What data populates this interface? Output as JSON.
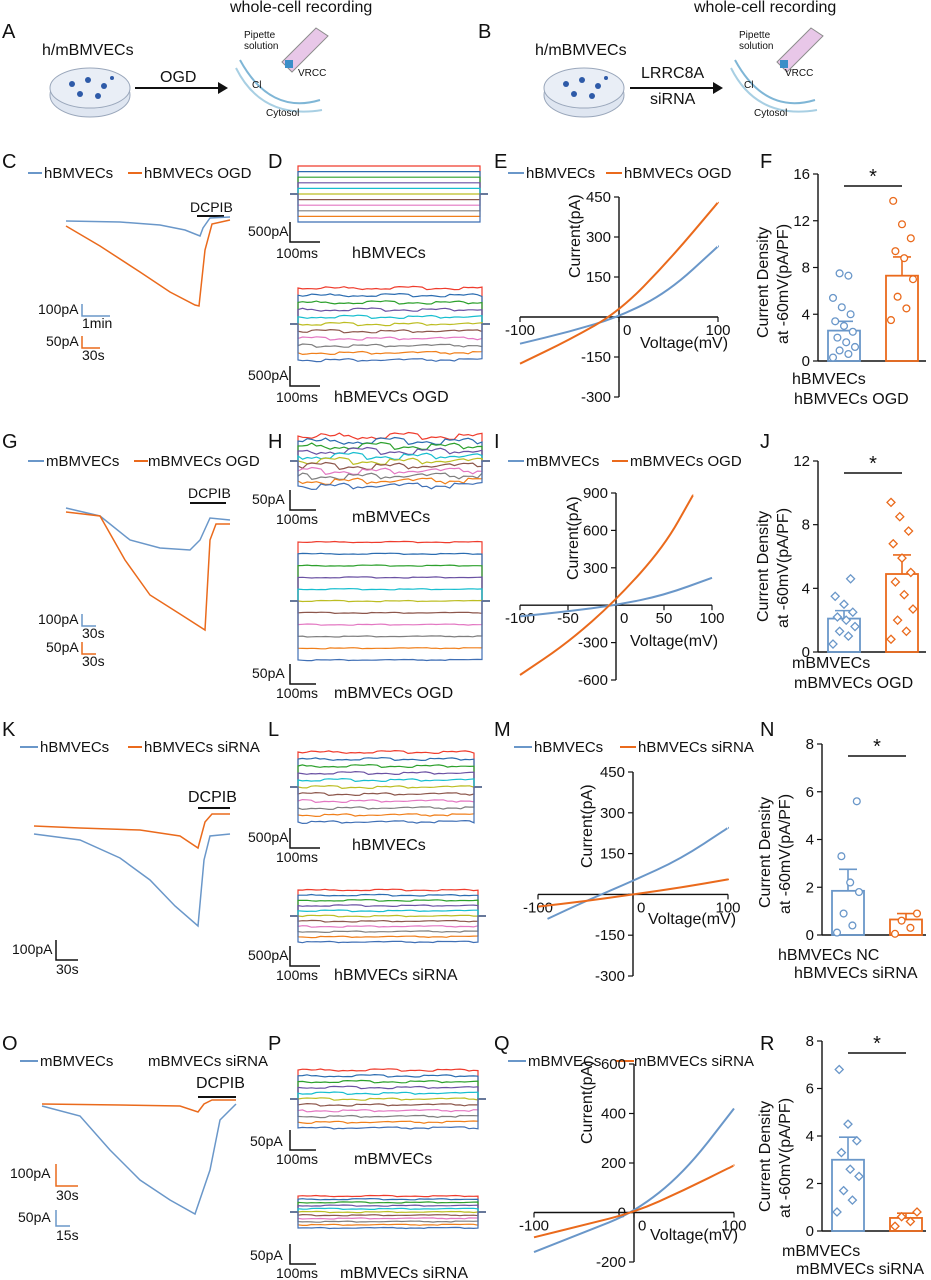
{
  "colors": {
    "blue": "#6a97c9",
    "orange": "#ea6a1c",
    "axis": "#111111"
  },
  "trace_palette": [
    "#ef3b2c",
    "#2b6cb0",
    "#2ca02c",
    "#6a51a3",
    "#17becf",
    "#bcbd22",
    "#8c564b",
    "#e377c2",
    "#7f7f7f",
    "#f07f1a",
    "#3f6fb5"
  ],
  "panel_labels": {
    "A": "A",
    "B": "B",
    "C": "C",
    "D": "D",
    "E": "E",
    "F": "F",
    "G": "G",
    "H": "H",
    "I": "I",
    "J": "J",
    "K": "K",
    "L": "L",
    "M": "M",
    "N": "N",
    "O": "O",
    "P": "P",
    "Q": "Q",
    "R": "R"
  },
  "schematic": {
    "A": {
      "title": "whole-cell recording",
      "cells": "h/mBMVECs",
      "arrow_top": "OGD",
      "arrow_bottom": "",
      "pipette": "Pipette solution",
      "pipette1": "Pipette",
      "pipette2": "solution",
      "vrcc": "VRCC",
      "cl": "Cl",
      "cytosol": "Cytosol"
    },
    "B": {
      "title": "whole-cell recording",
      "cells": "h/mBMVECs",
      "arrow_top": "LRRC8A",
      "arrow_bottom": "siRNA",
      "pipette1": "Pipette",
      "pipette2": "solution",
      "vrcc": "VRCC",
      "cl": "Cl",
      "cytosol": "Cytosol"
    }
  },
  "rows": [
    {
      "trace": {
        "legend_a": "hBMVECs",
        "legend_b": "hBMVECs OGD",
        "drug": "DCPIB",
        "scale1": "100pA",
        "scale1_t": "1min",
        "scale2": "50pA",
        "scale2_t": "30s"
      },
      "steps": {
        "top_label": "hBMVECs",
        "bottom_label": "hBMEVCs OGD",
        "scale_top": "500pA",
        "scale_top_t": "100ms",
        "scale_bottom": "500pA",
        "scale_bottom_t": "100ms"
      },
      "iv": {
        "legend_a": "hBMVECs",
        "legend_b": "hBMVECs OGD",
        "ylabel": "Current(pA)",
        "xlabel": "Voltage(mV)"
      },
      "bar": {
        "ylabel1": "Current Density",
        "ylabel2": "at -60mV(pA/PF)",
        "cat_a": "hBMVECs",
        "cat_b": "hBMVECs OGD",
        "sig": "*"
      }
    },
    {
      "trace": {
        "legend_a": "mBMVECs",
        "legend_b": "mBMVECs OGD",
        "drug": "DCPIB",
        "scale1": "100pA",
        "scale1_t": "30s",
        "scale2": "50pA",
        "scale2_t": "30s"
      },
      "steps": {
        "top_label": "mBMVECs",
        "bottom_label": "mBMVECs OGD",
        "scale_top": "50pA",
        "scale_top_t": "100ms",
        "scale_bottom": "50pA",
        "scale_bottom_t": "100ms"
      },
      "iv": {
        "legend_a": "mBMVECs",
        "legend_b": "mBMVECs OGD",
        "ylabel": "Current(pA)",
        "xlabel": "Voltage(mV)"
      },
      "bar": {
        "ylabel1": "Current Density",
        "ylabel2": "at -60mV(pA/PF)",
        "cat_a": "mBMVECs",
        "cat_b": "mBMVECs OGD",
        "sig": "*"
      }
    },
    {
      "trace": {
        "legend_a": "hBMVECs",
        "legend_b": "hBMVECs siRNA",
        "drug": "DCPIB",
        "scale1": "100pA",
        "scale1_t": "30s"
      },
      "steps": {
        "top_label": "hBMVECs",
        "bottom_label": "hBMVECs siRNA",
        "scale_top": "500pA",
        "scale_top_t": "100ms",
        "scale_bottom": "500pA",
        "scale_bottom_t": "100ms"
      },
      "iv": {
        "legend_a": "hBMVECs",
        "legend_b": "hBMVECs siRNA",
        "ylabel": "Current(pA)",
        "xlabel": "Voltage(mV)"
      },
      "bar": {
        "ylabel1": "Current Density",
        "ylabel2": "at -60mV(pA/PF)",
        "cat_a": "hBMVECs NC",
        "cat_b": "hBMVECs siRNA",
        "sig": "*"
      }
    },
    {
      "trace": {
        "legend_a": "mBMVECs",
        "legend_b": "mBMVECs siRNA",
        "drug": "DCPIB",
        "scale1": "100pA",
        "scale1_t": "30s",
        "scale2": "50pA",
        "scale2_t": "15s"
      },
      "steps": {
        "top_label": "mBMVECs",
        "bottom_label": "mBMVECs siRNA",
        "scale_top": "50pA",
        "scale_top_t": "100ms",
        "scale_bottom": "50pA",
        "scale_bottom_t": "100ms"
      },
      "iv": {
        "legend_a": "mBMVECs",
        "legend_b": "mBMVECs siRNA",
        "ylabel": "Current(pA)",
        "xlabel": "Voltage(mV)"
      },
      "bar": {
        "ylabel1": "Current Density",
        "ylabel2": "at -60mV(pA/PF)",
        "cat_a": "mBMVECs",
        "cat_b": "mBMVECs siRNA",
        "sig": "*"
      }
    }
  ],
  "chart_data": [
    {
      "panel": "E",
      "type": "line",
      "xlabel": "Voltage(mV)",
      "ylabel": "Current(pA)",
      "xlim": [
        -100,
        100
      ],
      "ylim": [
        -300,
        450
      ],
      "xticks": [
        -100,
        0,
        100
      ],
      "xtick_labels": [
        "-100",
        "0",
        "100"
      ],
      "yticks": [
        -300,
        -150,
        0,
        150,
        300,
        450
      ],
      "ytick_labels": [
        "-300",
        "-150",
        "",
        "150",
        "300",
        "450"
      ],
      "series": [
        {
          "name": "hBMVECs",
          "color": "#6a97c9",
          "x": [
            -100,
            -50,
            0,
            50,
            100
          ],
          "y": [
            -100,
            -55,
            0,
            95,
            265
          ]
        },
        {
          "name": "hBMVECs OGD",
          "color": "#ea6a1c",
          "x": [
            -100,
            -50,
            0,
            50,
            100
          ],
          "y": [
            -175,
            -85,
            20,
            210,
            430
          ]
        }
      ]
    },
    {
      "panel": "F",
      "type": "bar",
      "ylabel": "Current Density at -60mV(pA/PF)",
      "ylim": [
        0,
        16
      ],
      "yticks": [
        0,
        4,
        8,
        12,
        16
      ],
      "categories": [
        "hBMVECs",
        "hBMVECs OGD"
      ],
      "values": [
        2.6,
        7.3
      ],
      "sem": [
        0.8,
        1.6
      ],
      "points": [
        [
          0.3,
          0.6,
          0.9,
          1.2,
          1.6,
          2.0,
          2.5,
          3.0,
          3.4,
          4.0,
          4.6,
          5.4,
          7.3,
          7.5
        ],
        [
          3.5,
          4.5,
          5.5,
          7.0,
          8.8,
          9.4,
          10.5,
          11.7,
          13.7
        ]
      ],
      "significance": "*"
    },
    {
      "panel": "I",
      "type": "line",
      "xlabel": "Voltage(mV)",
      "ylabel": "Current(pA)",
      "xlim": [
        -100,
        100
      ],
      "ylim": [
        -600,
        900
      ],
      "xticks": [
        -100,
        -50,
        0,
        50,
        100
      ],
      "xtick_labels": [
        "-100",
        "-50",
        "0",
        "50",
        "100"
      ],
      "yticks": [
        -600,
        -300,
        0,
        300,
        600,
        900
      ],
      "ytick_labels": [
        "-600",
        "-300",
        "",
        "300",
        "600",
        "900"
      ],
      "series": [
        {
          "name": "mBMVECs",
          "color": "#6a97c9",
          "x": [
            -100,
            -50,
            0,
            50,
            100
          ],
          "y": [
            -90,
            -50,
            0,
            80,
            220
          ]
        },
        {
          "name": "mBMVECs OGD",
          "color": "#ea6a1c",
          "x": [
            -100,
            -50,
            0,
            50,
            80
          ],
          "y": [
            -560,
            -300,
            40,
            470,
            880
          ]
        }
      ]
    },
    {
      "panel": "J",
      "type": "bar",
      "ylabel": "Current Density at -60mV(pA/PF)",
      "ylim": [
        0,
        12
      ],
      "yticks": [
        0,
        4,
        8,
        12
      ],
      "categories": [
        "mBMVECs",
        "mBMVECs OGD"
      ],
      "values": [
        2.1,
        4.9
      ],
      "sem": [
        0.5,
        1.2
      ],
      "points": [
        [
          0.5,
          1.0,
          1.3,
          1.6,
          2.0,
          2.2,
          2.5,
          3.0,
          3.5,
          4.6
        ],
        [
          0.8,
          1.3,
          2.0,
          2.7,
          3.6,
          4.4,
          5.0,
          5.9,
          6.8,
          7.6,
          8.5,
          9.4
        ]
      ],
      "significance": "*"
    },
    {
      "panel": "M",
      "type": "line",
      "xlabel": "Voltage(mV)",
      "ylabel": "Current(pA)",
      "xlim": [
        -100,
        100
      ],
      "ylim": [
        -300,
        450
      ],
      "xticks": [
        -100,
        0,
        100
      ],
      "xtick_labels": [
        "-100",
        "0",
        "100"
      ],
      "yticks": [
        -300,
        -150,
        0,
        150,
        300,
        450
      ],
      "ytick_labels": [
        "-300",
        "-150",
        "",
        "150",
        "300",
        "450"
      ],
      "series": [
        {
          "name": "hBMVECs",
          "color": "#6a97c9",
          "x": [
            -90,
            -50,
            0,
            50,
            100
          ],
          "y": [
            -90,
            -25,
            50,
            130,
            245
          ]
        },
        {
          "name": "hBMVECs siRNA",
          "color": "#ea6a1c",
          "x": [
            -100,
            -50,
            0,
            50,
            100
          ],
          "y": [
            -45,
            -25,
            0,
            25,
            55
          ]
        }
      ]
    },
    {
      "panel": "N",
      "type": "bar",
      "ylabel": "Current Density at -60mV(pA/PF)",
      "ylim": [
        0,
        8
      ],
      "yticks": [
        0,
        2,
        4,
        6,
        8
      ],
      "categories": [
        "hBMVECs NC",
        "hBMVECs siRNA"
      ],
      "values": [
        1.85,
        0.65
      ],
      "sem": [
        0.9,
        0.25
      ],
      "points": [
        [
          0.1,
          0.4,
          0.9,
          1.8,
          2.2,
          3.3,
          5.6
        ],
        [
          0.05,
          0.3,
          0.6,
          0.9
        ]
      ],
      "significance": "*"
    },
    {
      "panel": "Q",
      "type": "line",
      "xlabel": "Voltage(mV)",
      "ylabel": "Current(pA)",
      "xlim": [
        -100,
        100
      ],
      "ylim": [
        -200,
        600
      ],
      "xticks": [
        -100,
        0,
        100
      ],
      "xtick_labels": [
        "-100",
        "0",
        "100"
      ],
      "yticks": [
        -200,
        0,
        200,
        400,
        600
      ],
      "ytick_labels": [
        "-200",
        "0",
        "200",
        "400",
        "600"
      ],
      "series": [
        {
          "name": "mBMVECs",
          "color": "#6a97c9",
          "x": [
            -100,
            -50,
            0,
            50,
            100
          ],
          "y": [
            -160,
            -80,
            0,
            160,
            420
          ]
        },
        {
          "name": "mBMVECs siRNA",
          "color": "#ea6a1c",
          "x": [
            -100,
            -50,
            0,
            50,
            100
          ],
          "y": [
            -100,
            -50,
            0,
            90,
            190
          ]
        }
      ]
    },
    {
      "panel": "R",
      "type": "bar",
      "ylabel": "Current Density at -60mV(pA/PF)",
      "ylim": [
        0,
        8
      ],
      "yticks": [
        0,
        2,
        4,
        6,
        8
      ],
      "categories": [
        "mBMVECs",
        "mBMVECs siRNA"
      ],
      "values": [
        3.0,
        0.55
      ],
      "sem": [
        0.95,
        0.2
      ],
      "points": [
        [
          0.8,
          1.3,
          1.7,
          2.3,
          2.6,
          3.3,
          3.8,
          4.5,
          6.8
        ],
        [
          0.2,
          0.4,
          0.6,
          0.8
        ]
      ],
      "significance": "*"
    }
  ]
}
